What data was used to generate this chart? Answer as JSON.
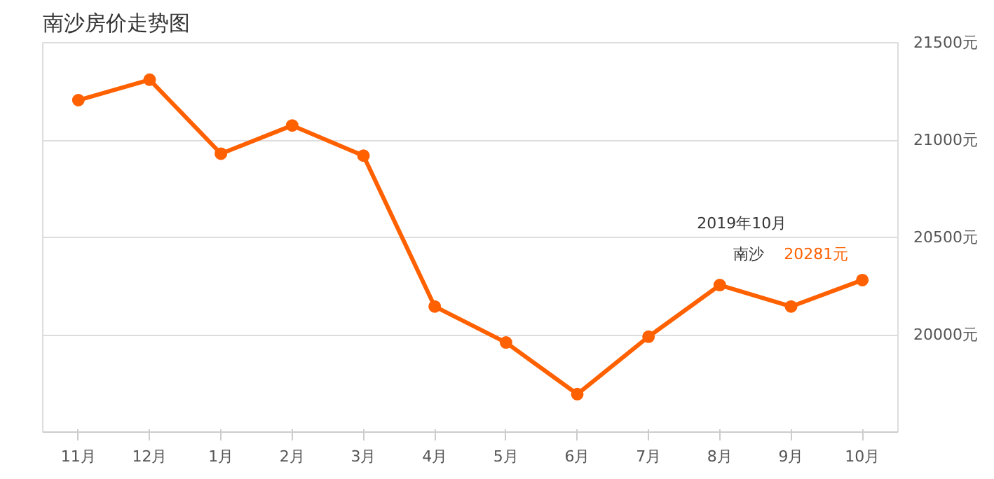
{
  "chart_data": {
    "type": "line",
    "title": "南沙房价走势图",
    "categories": [
      "11月",
      "12月",
      "1月",
      "2月",
      "3月",
      "4月",
      "5月",
      "6月",
      "7月",
      "8月",
      "9月",
      "10月"
    ],
    "series": [
      {
        "name": "南沙",
        "color": "#ff6000",
        "values": [
          21205,
          21310,
          20930,
          21075,
          20920,
          20145,
          19960,
          19695,
          19990,
          20255,
          20145,
          20281
        ],
        "value_labels": [
          null,
          null,
          null,
          null,
          null,
          null,
          null,
          null,
          null,
          null,
          null,
          "20281元"
        ]
      }
    ],
    "ylim": [
      19500,
      21500
    ],
    "yticks": [
      {
        "value": 20000,
        "label": "20000元"
      },
      {
        "value": 20500,
        "label": "20500元"
      },
      {
        "value": 21000,
        "label": "21000元"
      },
      {
        "value": 21500,
        "label": "21500元"
      }
    ],
    "grid": "y",
    "marker": "circle",
    "line_style": "solid",
    "annotations": [
      "2019年10月"
    ]
  }
}
